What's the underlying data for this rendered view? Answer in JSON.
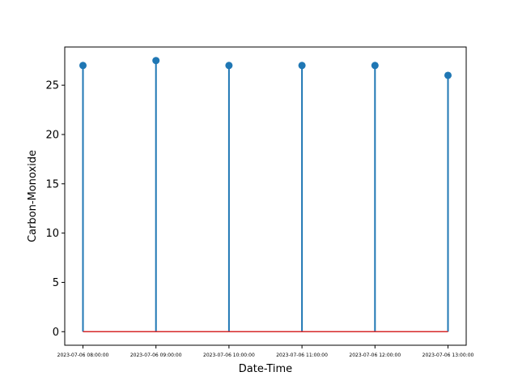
{
  "chart_data": {
    "type": "stem",
    "x": [
      "2023-07-06 08:00:00",
      "2023-07-06 09:00:00",
      "2023-07-06 10:00:00",
      "2023-07-06 11:00:00",
      "2023-07-06 12:00:00",
      "2023-07-06 13:00:00"
    ],
    "values": [
      27.0,
      27.5,
      27.0,
      27.0,
      27.0,
      26.0
    ],
    "xlabel": "Date-Time",
    "ylabel": "Carbon-Monoxide",
    "ylim": [
      -1.375,
      28.875
    ],
    "yticks": [
      0,
      5,
      10,
      15,
      20,
      25
    ],
    "grid": false,
    "colors": {
      "stem": "#1f77b4",
      "marker": "#1f77b4",
      "baseline": "#d62728"
    }
  }
}
